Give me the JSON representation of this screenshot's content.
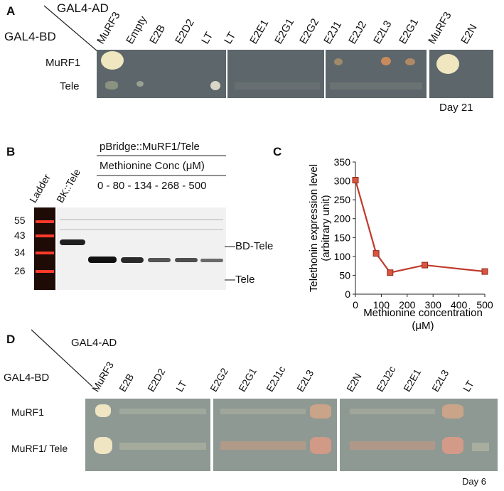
{
  "panels": {
    "A": "A",
    "B": "B",
    "C": "C",
    "D": "D"
  },
  "panelA": {
    "ad_label": "GAL4-AD",
    "bd_label": "GAL4-BD",
    "columns": [
      "MuRF3",
      "Empty",
      "E2B",
      "E2D2",
      "LT",
      "LT",
      "E2E1",
      "E2G1",
      "E2G2",
      "E2J1",
      "E2J2",
      "E2L3",
      "E2G1",
      "MuRF3",
      "E2N"
    ],
    "rows": [
      "MuRF1",
      "Tele"
    ],
    "day": "Day 21"
  },
  "panelB": {
    "header": "pBridge::MuRF1/Tele",
    "subheader": "Methionine Conc (μM)",
    "concentrations": "0 - 80 - 134 - 268 - 500",
    "lane_ladder": "Ladder",
    "lane_bk": "BK::Tele",
    "markers": [
      "55",
      "43",
      "34",
      "26"
    ],
    "band_bd": "BD-Tele",
    "band_tele": "Tele"
  },
  "panelC": {
    "ylabel_line1": "Telethonin expression level",
    "ylabel_line2": "(arbitrary unit)",
    "xlabel_line1": "Methionine concentration",
    "xlabel_line2": "(μM)"
  },
  "chart_data": {
    "type": "line",
    "x": [
      0,
      80,
      134,
      268,
      500
    ],
    "series": [
      {
        "values": [
          302,
          108,
          57,
          77,
          60
        ]
      }
    ],
    "xlim": [
      0,
      500
    ],
    "ylim": [
      0,
      350
    ],
    "xticks": [
      0,
      100,
      200,
      300,
      400,
      500
    ],
    "yticks": [
      0,
      50,
      100,
      150,
      200,
      250,
      300,
      350
    ],
    "color": "#c0392b"
  },
  "panelD": {
    "ad_label": "GAL4-AD",
    "bd_label": "GAL4-BD",
    "columns": [
      "MuRF3",
      "E2B",
      "E2D2",
      "LT",
      "E2G2",
      "E2G1",
      "E2J1c",
      "E2L3",
      "E2N",
      "E2J2c",
      "E2E1",
      "E2L3",
      "LT"
    ],
    "rows": [
      "MuRF1",
      "MuRF1/ Tele"
    ],
    "day": "Day 6"
  }
}
